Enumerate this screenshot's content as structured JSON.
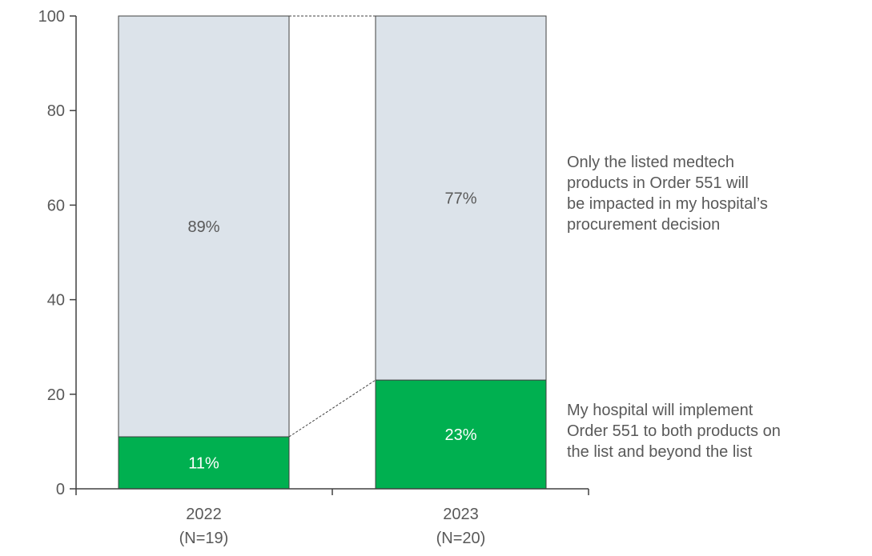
{
  "chart_data": {
    "type": "bar",
    "stacked": true,
    "categories": [
      "2022",
      "2023"
    ],
    "category_sublabels": [
      "(N=19)",
      "(N=20)"
    ],
    "series": [
      {
        "name": "My hospital will implement Order 551 to both products on the list and beyond the list",
        "values": [
          11,
          23
        ],
        "labels": [
          "11%",
          "23%"
        ],
        "color": "#00b050",
        "label_color": "#ffffff"
      },
      {
        "name": "Only the listed medtech products in Order 551 will be impacted in my hospital’s procurement decision",
        "values": [
          89,
          77
        ],
        "labels": [
          "89%",
          "77%"
        ],
        "color": "#dce3ea",
        "label_color": "#595959"
      }
    ],
    "ylim": [
      0,
      100
    ],
    "yticks": [
      0,
      20,
      40,
      60,
      80,
      100
    ],
    "connector_lines": true,
    "grid": false
  },
  "legend": {
    "bottom_lines": [
      "My hospital will implement",
      "Order 551 to both products on",
      "the list and beyond the list"
    ],
    "top_lines": [
      "Only the listed medtech",
      "products in Order 551 will",
      "be impacted in my hospital’s",
      "procurement decision"
    ]
  }
}
